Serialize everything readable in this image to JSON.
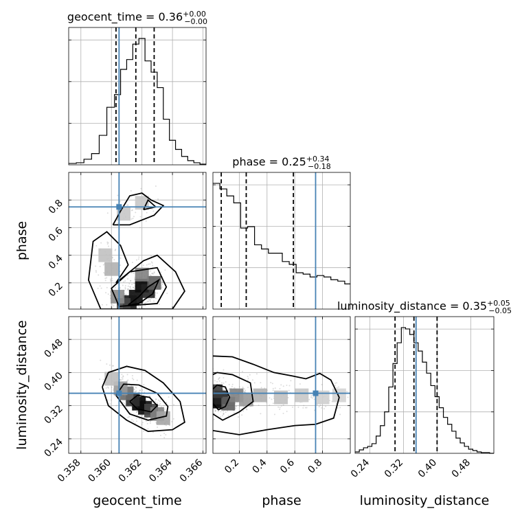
{
  "chart_data": {
    "type": "corner",
    "colors": {
      "truth": "#4682b4",
      "line": "#000000",
      "grid": "#b0b0b0",
      "scatter": "#9a9a9a"
    },
    "parameters": [
      {
        "name": "geocent_time",
        "axis_label": "geocent_time",
        "range": [
          0.3572,
          0.3662
        ],
        "ticks": [
          0.358,
          0.36,
          0.362,
          0.364,
          0.366
        ],
        "tick_labels": [
          "0.358",
          "0.360",
          "0.362",
          "0.364",
          "0.366"
        ],
        "truth": 0.3605,
        "quantiles": [
          0.3603,
          0.3616,
          0.3628
        ],
        "title": {
          "main": "geocent_time = 0.36",
          "sup": "+0.00",
          "sub": "−0.00"
        },
        "hist_bins": [
          0.3572,
          0.3577,
          0.3582,
          0.3587,
          0.3592,
          0.3597,
          0.3602,
          0.3606,
          0.361,
          0.3614,
          0.3618,
          0.3622,
          0.3626,
          0.363,
          0.3634,
          0.3638,
          0.3642,
          0.3646,
          0.365,
          0.3654,
          0.3658,
          0.3662
        ],
        "hist_counts": [
          2,
          3,
          8,
          16,
          42,
          82,
          100,
          136,
          150,
          172,
          180,
          148,
          132,
          110,
          65,
          35,
          22,
          12,
          6,
          3,
          1
        ]
      },
      {
        "name": "phase",
        "axis_label": "phase",
        "range": [
          0.01,
          1.0
        ],
        "ticks": [
          0.2,
          0.4,
          0.6,
          0.8
        ],
        "tick_labels": [
          "0.2",
          "0.4",
          "0.6",
          "0.8"
        ],
        "truth": 0.75,
        "quantiles": [
          0.07,
          0.25,
          0.59
        ],
        "title": {
          "main": "phase = 0.25",
          "sup": "+0.34",
          "sub": "−0.18"
        },
        "hist_bins": [
          0.01,
          0.06,
          0.11,
          0.16,
          0.21,
          0.26,
          0.31,
          0.36,
          0.41,
          0.46,
          0.51,
          0.56,
          0.61,
          0.66,
          0.71,
          0.76,
          0.81,
          0.86,
          0.91,
          0.96,
          1.0
        ],
        "hist_counts": [
          180,
          172,
          162,
          152,
          116,
          118,
          92,
          86,
          80,
          80,
          68,
          64,
          52,
          50,
          46,
          48,
          46,
          42,
          40,
          36
        ]
      },
      {
        "name": "luminosity_distance",
        "axis_label": "luminosity_distance",
        "range": [
          0.205,
          0.535
        ],
        "ticks": [
          0.24,
          0.32,
          0.4,
          0.48
        ],
        "tick_labels": [
          "0.24",
          "0.32",
          "0.40",
          "0.48"
        ],
        "truth": 0.35,
        "quantiles": [
          0.3,
          0.345,
          0.4
        ],
        "title": {
          "main": "luminosity_distance = 0.35",
          "sup": "+0.05",
          "sub": "−0.05"
        },
        "hist_bins": [
          0.205,
          0.215,
          0.225,
          0.235,
          0.245,
          0.255,
          0.265,
          0.275,
          0.285,
          0.295,
          0.305,
          0.315,
          0.325,
          0.335,
          0.345,
          0.355,
          0.365,
          0.375,
          0.385,
          0.395,
          0.405,
          0.415,
          0.425,
          0.435,
          0.445,
          0.455,
          0.465,
          0.475,
          0.485,
          0.495,
          0.505,
          0.515,
          0.525,
          0.535
        ],
        "hist_counts": [
          2,
          5,
          8,
          10,
          14,
          25,
          40,
          60,
          96,
          130,
          160,
          182,
          180,
          172,
          160,
          148,
          132,
          116,
          98,
          82,
          66,
          52,
          42,
          32,
          22,
          15,
          10,
          6,
          4,
          2,
          1,
          1,
          0
        ]
      }
    ],
    "pairs": [
      {
        "x": "geocent_time",
        "y": "phase",
        "truth": [
          0.3605,
          0.75
        ],
        "contour_levels": [
          "39.3%",
          "86.5%",
          "98.9%"
        ],
        "contours": [
          [
            [
              0.3611,
              0.04
            ],
            [
              0.3618,
              0.1
            ],
            [
              0.3624,
              0.17
            ],
            [
              0.3631,
              0.22
            ],
            [
              0.3627,
              0.12
            ],
            [
              0.3618,
              0.05
            ],
            [
              0.3611,
              0.04
            ]
          ],
          [
            [
              0.3605,
              0.03
            ],
            [
              0.36,
              0.16
            ],
            [
              0.3612,
              0.28
            ],
            [
              0.363,
              0.31
            ],
            [
              0.3636,
              0.17
            ],
            [
              0.363,
              0.05
            ],
            [
              0.3605,
              0.03
            ]
          ],
          [
            [
              0.3593,
              0.01
            ],
            [
              0.3585,
              0.22
            ],
            [
              0.3588,
              0.5
            ],
            [
              0.3597,
              0.57
            ],
            [
              0.3606,
              0.47
            ],
            [
              0.3611,
              0.33
            ],
            [
              0.3603,
              0.2
            ],
            [
              0.3621,
              0.36
            ],
            [
              0.363,
              0.4
            ],
            [
              0.3642,
              0.28
            ],
            [
              0.3648,
              0.14
            ],
            [
              0.364,
              0.01
            ],
            [
              0.3593,
              0.01
            ]
          ],
          [
            [
              0.3601,
              0.62
            ],
            [
              0.3606,
              0.72
            ],
            [
              0.3612,
              0.83
            ],
            [
              0.362,
              0.85
            ],
            [
              0.3626,
              0.8
            ],
            [
              0.3634,
              0.76
            ],
            [
              0.3628,
              0.69
            ],
            [
              0.3612,
              0.62
            ],
            [
              0.3601,
              0.62
            ]
          ],
          [
            [
              0.3621,
              0.73
            ],
            [
              0.3624,
              0.8
            ],
            [
              0.3629,
              0.75
            ],
            [
              0.3621,
              0.73
            ]
          ]
        ],
        "density": [
          [
            0.362,
            0.18,
            1.0
          ],
          [
            0.3616,
            0.1,
            0.95
          ],
          [
            0.3612,
            0.06,
            0.9
          ],
          [
            0.3624,
            0.14,
            0.85
          ],
          [
            0.3608,
            0.04,
            0.7
          ],
          [
            0.3628,
            0.2,
            0.6
          ],
          [
            0.362,
            0.26,
            0.45
          ],
          [
            0.3604,
            0.1,
            0.4
          ],
          [
            0.36,
            0.3,
            0.25
          ],
          [
            0.3596,
            0.4,
            0.18
          ],
          [
            0.3608,
            0.7,
            0.15
          ],
          [
            0.362,
            0.78,
            0.15
          ]
        ]
      },
      {
        "x": "geocent_time",
        "y": "luminosity_distance",
        "truth": [
          0.3605,
          0.35
        ],
        "contour_levels": [
          "39.3%",
          "86.5%",
          "98.9%"
        ],
        "contours": [
          [
            [
              0.3612,
              0.33
            ],
            [
              0.3617,
              0.345
            ],
            [
              0.3625,
              0.34
            ],
            [
              0.363,
              0.32
            ],
            [
              0.3626,
              0.305
            ],
            [
              0.3617,
              0.312
            ],
            [
              0.3612,
              0.33
            ]
          ],
          [
            [
              0.3603,
              0.345
            ],
            [
              0.3608,
              0.372
            ],
            [
              0.3618,
              0.37
            ],
            [
              0.363,
              0.35
            ],
            [
              0.3637,
              0.318
            ],
            [
              0.3636,
              0.295
            ],
            [
              0.3624,
              0.285
            ],
            [
              0.3612,
              0.3
            ],
            [
              0.3603,
              0.345
            ]
          ],
          [
            [
              0.3594,
              0.365
            ],
            [
              0.3598,
              0.4
            ],
            [
              0.361,
              0.415
            ],
            [
              0.3622,
              0.405
            ],
            [
              0.3634,
              0.375
            ],
            [
              0.3645,
              0.33
            ],
            [
              0.3648,
              0.28
            ],
            [
              0.364,
              0.262
            ],
            [
              0.3624,
              0.258
            ],
            [
              0.361,
              0.285
            ],
            [
              0.3598,
              0.32
            ],
            [
              0.3594,
              0.365
            ]
          ]
        ],
        "density": [
          [
            0.3618,
            0.325,
            1.0
          ],
          [
            0.3622,
            0.315,
            0.95
          ],
          [
            0.3614,
            0.335,
            0.8
          ],
          [
            0.3626,
            0.308,
            0.7
          ],
          [
            0.361,
            0.35,
            0.55
          ],
          [
            0.363,
            0.3,
            0.45
          ],
          [
            0.3606,
            0.362,
            0.35
          ],
          [
            0.3634,
            0.29,
            0.3
          ],
          [
            0.36,
            0.385,
            0.2
          ]
        ]
      },
      {
        "x": "phase",
        "y": "luminosity_distance",
        "truth": [
          0.75,
          0.35
        ],
        "contour_levels": [
          "39.3%",
          "86.5%",
          "98.9%"
        ],
        "contours": [
          [
            [
              0.01,
              0.325
            ],
            [
              0.05,
              0.31
            ],
            [
              0.1,
              0.318
            ],
            [
              0.13,
              0.34
            ],
            [
              0.1,
              0.365
            ],
            [
              0.04,
              0.37
            ],
            [
              0.01,
              0.36
            ]
          ],
          [
            [
              0.01,
              0.3
            ],
            [
              0.08,
              0.285
            ],
            [
              0.2,
              0.305
            ],
            [
              0.3,
              0.33
            ],
            [
              0.28,
              0.375
            ],
            [
              0.15,
              0.395
            ],
            [
              0.04,
              0.4
            ],
            [
              0.01,
              0.395
            ]
          ],
          [
            [
              0.01,
              0.26
            ],
            [
              0.2,
              0.25
            ],
            [
              0.4,
              0.262
            ],
            [
              0.6,
              0.272
            ],
            [
              0.75,
              0.275
            ],
            [
              0.88,
              0.29
            ],
            [
              0.92,
              0.34
            ],
            [
              0.86,
              0.382
            ],
            [
              0.78,
              0.398
            ],
            [
              0.68,
              0.385
            ],
            [
              0.58,
              0.392
            ],
            [
              0.45,
              0.4
            ],
            [
              0.3,
              0.42
            ],
            [
              0.15,
              0.438
            ],
            [
              0.01,
              0.44
            ]
          ]
        ],
        "density": [
          [
            0.03,
            0.33,
            1.0
          ],
          [
            0.07,
            0.34,
            0.85
          ],
          [
            0.12,
            0.325,
            0.6
          ],
          [
            0.03,
            0.355,
            0.75
          ],
          [
            0.18,
            0.345,
            0.45
          ],
          [
            0.25,
            0.335,
            0.35
          ],
          [
            0.35,
            0.345,
            0.25
          ],
          [
            0.5,
            0.34,
            0.18
          ],
          [
            0.65,
            0.345,
            0.15
          ],
          [
            0.8,
            0.34,
            0.12
          ],
          [
            0.92,
            0.345,
            0.1
          ]
        ]
      }
    ]
  }
}
